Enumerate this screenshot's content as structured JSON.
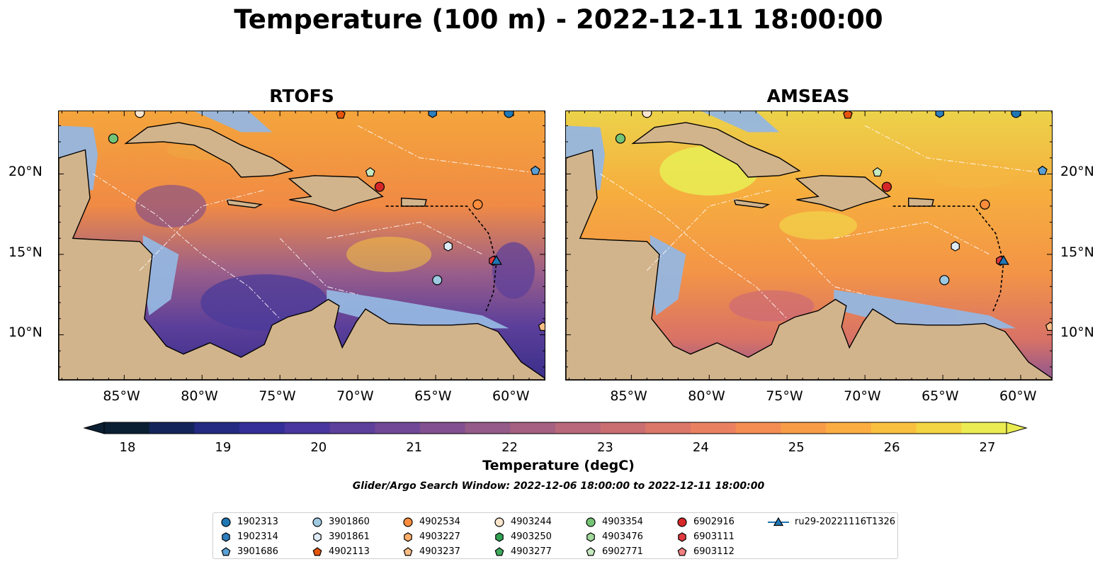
{
  "title": "Temperature (100 m) - 2022-12-11 18:00:00",
  "panels": [
    {
      "title": "RTOFS"
    },
    {
      "title": "AMSEAS"
    }
  ],
  "lon_ticks": [
    "85°W",
    "80°W",
    "75°W",
    "70°W",
    "65°W",
    "60°W"
  ],
  "lat_ticks": [
    "20°N",
    "15°N",
    "10°N"
  ],
  "colorbar": {
    "ticks": [
      "18",
      "19",
      "20",
      "21",
      "22",
      "23",
      "24",
      "25",
      "26",
      "27"
    ],
    "label": "Temperature (degC)",
    "colors": [
      "#0b1f33",
      "#13245a",
      "#242a82",
      "#342e98",
      "#49369e",
      "#5d409c",
      "#704898",
      "#825090",
      "#945a88",
      "#a66080",
      "#b8687a",
      "#ca6e72",
      "#db7768",
      "#e98160",
      "#f48d52",
      "#f99c48",
      "#fbad42",
      "#f9c040",
      "#f3d442",
      "#ebec52"
    ]
  },
  "search_window": "Glider/Argo Search Window: 2022-12-06 18:00:00 to 2022-12-11 18:00:00",
  "legend": [
    {
      "label": "1902313",
      "marker": "circle",
      "color": "#1f77b4"
    },
    {
      "label": "1902314",
      "marker": "hexagon",
      "color": "#2e7ebd"
    },
    {
      "label": "3901686",
      "marker": "pentagon",
      "color": "#5a9fd4"
    },
    {
      "label": "3901860",
      "marker": "circle",
      "color": "#9ecae1"
    },
    {
      "label": "3901861",
      "marker": "hexagon",
      "color": "#deebf7"
    },
    {
      "label": "4902113",
      "marker": "pentagon",
      "color": "#e6550d"
    },
    {
      "label": "4902534",
      "marker": "circle",
      "color": "#fd8d3c"
    },
    {
      "label": "4903227",
      "marker": "hexagon",
      "color": "#fdae6b"
    },
    {
      "label": "4903237",
      "marker": "pentagon",
      "color": "#fdbe85"
    },
    {
      "label": "4903244",
      "marker": "circle",
      "color": "#fee6ce"
    },
    {
      "label": "4903250",
      "marker": "hexagon",
      "color": "#31a354"
    },
    {
      "label": "4903277",
      "marker": "pentagon",
      "color": "#41ab5d"
    },
    {
      "label": "4903354",
      "marker": "circle",
      "color": "#74c476"
    },
    {
      "label": "4903476",
      "marker": "hexagon",
      "color": "#a1d99b"
    },
    {
      "label": "6902771",
      "marker": "pentagon",
      "color": "#c7e9c0"
    },
    {
      "label": "6902916",
      "marker": "circle",
      "color": "#d62728"
    },
    {
      "label": "6903111",
      "marker": "hexagon",
      "color": "#e0393e"
    },
    {
      "label": "6903112",
      "marker": "pentagon",
      "color": "#f08080"
    },
    {
      "label": "ru29-20221116T1326",
      "marker": "triangle-line",
      "color": "#1f77b4"
    }
  ],
  "markers_on_map": [
    {
      "id": "4903354",
      "lon": -85.7,
      "lat": 22.2
    },
    {
      "id": "4903244",
      "lon": -84.0,
      "lat": 23.8
    },
    {
      "id": "4902113",
      "lon": -71.1,
      "lat": 23.7
    },
    {
      "id": "1902314",
      "lon": -65.2,
      "lat": 23.8
    },
    {
      "id": "1902313",
      "lon": -60.3,
      "lat": 23.8
    },
    {
      "id": "3901686",
      "lon": -58.6,
      "lat": 20.2
    },
    {
      "id": "6902771",
      "lon": -69.2,
      "lat": 20.1
    },
    {
      "id": "6902916",
      "lon": -68.6,
      "lat": 19.2
    },
    {
      "id": "4902534",
      "lon": -62.3,
      "lat": 18.1
    },
    {
      "id": "3901861",
      "lon": -64.2,
      "lat": 15.5
    },
    {
      "id": "3901860",
      "lon": -64.9,
      "lat": 13.4
    },
    {
      "id": "6903111",
      "lon": -61.3,
      "lat": 14.6
    },
    {
      "id": "ru29-20221116T1326",
      "lon": -61.1,
      "lat": 14.6
    },
    {
      "id": "4903237",
      "lon": -58.1,
      "lat": 10.5
    }
  ]
}
